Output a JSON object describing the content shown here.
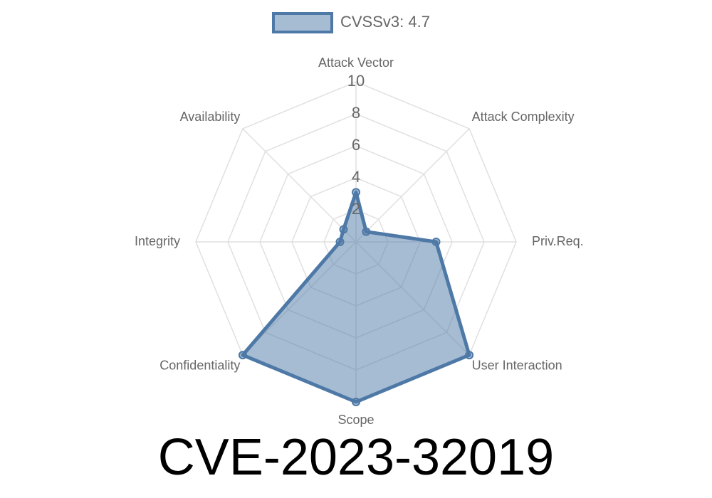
{
  "chart_data": {
    "type": "radar",
    "title": "CVE-2023-32019",
    "categories": [
      "Attack Vector",
      "Attack Complexity",
      "Priv.Req.",
      "User Interaction",
      "Scope",
      "Confidentiality",
      "Integrity",
      "Availability"
    ],
    "series": [
      {
        "name": "CVSSv3: 4.7",
        "color": "#4e79a7",
        "values": [
          3.1,
          0.9,
          5.0,
          10,
          10,
          10,
          1.0,
          1.1
        ]
      }
    ],
    "rlim": [
      0,
      10
    ],
    "rticks": [
      2,
      4,
      6,
      8,
      10
    ],
    "grid": true
  }
}
